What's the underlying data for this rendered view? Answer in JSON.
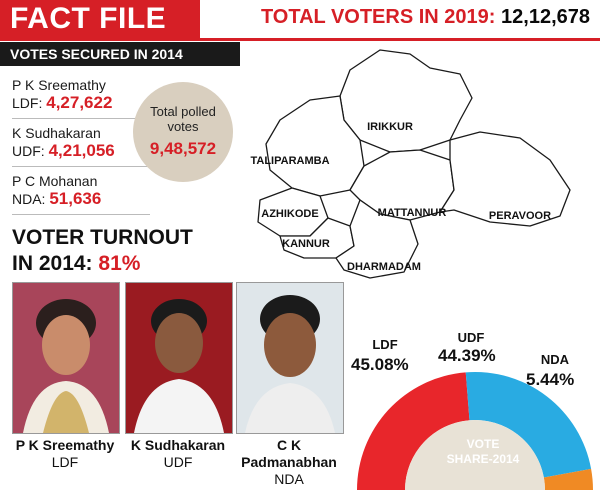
{
  "header": {
    "title": "FACT FILE",
    "total_voters_label": "TOTAL VOTERS IN 2019:",
    "total_voters_value": "12,12,678"
  },
  "votes_secured": {
    "heading": "VOTES SECURED IN 2014",
    "candidates": [
      {
        "name": "P K Sreemathy",
        "party": "LDF:",
        "votes": "4,27,622"
      },
      {
        "name": "K Sudhakaran",
        "party": "UDF:",
        "votes": "4,21,056"
      },
      {
        "name": "P C Mohanan",
        "party": "NDA:",
        "votes": "51,636"
      }
    ],
    "polled_label": "Total polled votes",
    "polled_value": "9,48,572"
  },
  "turnout": {
    "line1": "VOTER TURNOUT",
    "line2_prefix": "IN 2014:",
    "value": "81%"
  },
  "photos": [
    {
      "name": "P K Sreemathy",
      "party": "LDF"
    },
    {
      "name": "K Sudhakaran",
      "party": "UDF"
    },
    {
      "name": "C K Padmanabhan",
      "party": "NDA"
    }
  ],
  "map": {
    "regions": [
      "IRIKKUR",
      "TALIPARAMBA",
      "AZHIKODE",
      "MATTANNUR",
      "PERAVOOR",
      "KANNUR",
      "DHARMADAM"
    ]
  },
  "vote_share": {
    "title_line1": "VOTE",
    "title_line2": "SHARE-2014",
    "items": [
      {
        "party": "LDF",
        "pct": "45.08%",
        "value": 45.08,
        "color": "#e8262b"
      },
      {
        "party": "UDF",
        "pct": "44.39%",
        "value": 44.39,
        "color": "#29abe2"
      },
      {
        "party": "NDA",
        "pct": "5.44%",
        "value": 5.44,
        "color": "#f08a24"
      }
    ]
  },
  "colors": {
    "accent_red": "#d61f26",
    "polled_circle": "#d9cfbf"
  }
}
